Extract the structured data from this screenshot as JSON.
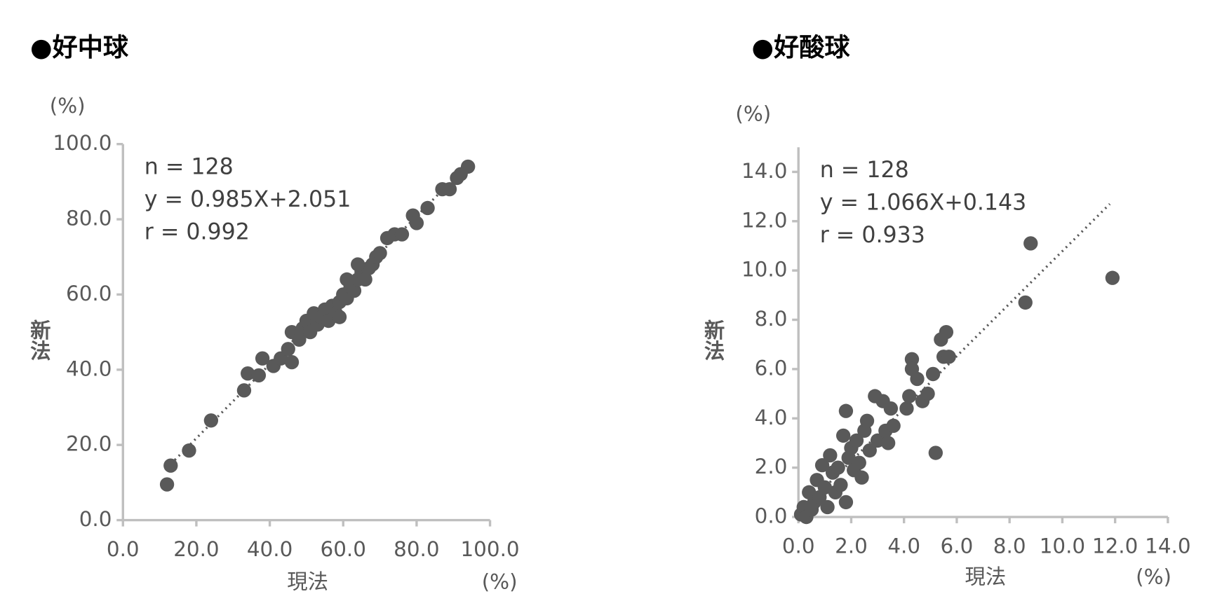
{
  "chart_data": [
    {
      "type": "scatter",
      "title": "●好中球",
      "x_label": "現法",
      "y_label": "新法",
      "x_unit": "(%)",
      "y_unit": "(%)",
      "annotations": [
        "n = 128",
        "y = 0.985X+2.051",
        "r = 0.992"
      ],
      "color": "#595959",
      "xlim": [
        0,
        100
      ],
      "ylim": [
        0,
        100
      ],
      "xticks": [
        {
          "value": 0,
          "label": "0.0"
        },
        {
          "value": 20,
          "label": "20.0"
        },
        {
          "value": 40,
          "label": "40.0"
        },
        {
          "value": 60,
          "label": "60.0"
        },
        {
          "value": 80,
          "label": "80.0"
        },
        {
          "value": 100,
          "label": "100.0"
        }
      ],
      "yticks": [
        {
          "value": 0,
          "label": "0.0"
        },
        {
          "value": 20,
          "label": "20.0"
        },
        {
          "value": 40,
          "label": "40.0"
        },
        {
          "value": 60,
          "label": "60.0"
        },
        {
          "value": 80,
          "label": "80.0"
        },
        {
          "value": 100,
          "label": "100.0"
        }
      ],
      "x": [
        12,
        13,
        18,
        24,
        33,
        34,
        37,
        38,
        41,
        43,
        45,
        46,
        46,
        48,
        49,
        50,
        51,
        52,
        53,
        54,
        55,
        56,
        57,
        58,
        59,
        59,
        60,
        61,
        62,
        63,
        64,
        65,
        66,
        67,
        68,
        69,
        70,
        72,
        74,
        76,
        79,
        80,
        83,
        87,
        89,
        91,
        92,
        94,
        61,
        64
      ],
      "values": [
        9.5,
        14.5,
        18.5,
        26.5,
        34.5,
        39,
        38.5,
        43,
        41,
        43,
        45.5,
        42,
        50,
        48,
        51,
        53,
        50,
        55,
        52,
        54,
        56,
        53,
        57,
        55,
        54,
        58,
        60,
        59,
        62,
        61,
        64,
        66,
        64,
        67,
        68,
        70,
        71,
        75,
        76,
        76,
        81,
        79,
        83,
        88,
        88,
        91,
        92,
        94,
        64,
        68
      ],
      "trendline": {
        "x": [
          12,
          94
        ],
        "y": [
          13.9,
          94.6
        ]
      }
    },
    {
      "type": "scatter",
      "title": "●好酸球",
      "x_label": "現法",
      "y_label": "新法",
      "x_unit": "(%)",
      "y_unit": "(%)",
      "annotations": [
        "n = 128",
        "y = 1.066X+0.143",
        "r = 0.933"
      ],
      "color": "#595959",
      "xlim": [
        0,
        14
      ],
      "ylim": [
        0,
        15
      ],
      "xticks": [
        {
          "value": 0,
          "label": "0.0"
        },
        {
          "value": 2,
          "label": "2.0"
        },
        {
          "value": 4,
          "label": "4.0"
        },
        {
          "value": 6,
          "label": "6.0"
        },
        {
          "value": 8,
          "label": "8.0"
        },
        {
          "value": 10,
          "label": "10.0"
        },
        {
          "value": 12,
          "label": "12.0"
        },
        {
          "value": 14,
          "label": "14.0"
        }
      ],
      "yticks": [
        {
          "value": 0,
          "label": "0.0"
        },
        {
          "value": 2,
          "label": "2.0"
        },
        {
          "value": 4,
          "label": "4.0"
        },
        {
          "value": 6,
          "label": "6.0"
        },
        {
          "value": 8,
          "label": "8.0"
        },
        {
          "value": 10,
          "label": "10.0"
        },
        {
          "value": 12,
          "label": "12.0"
        },
        {
          "value": 14,
          "label": "14.0"
        }
      ],
      "x": [
        0.1,
        0.2,
        0.3,
        0.4,
        0.5,
        0.6,
        0.7,
        0.8,
        0.9,
        1,
        1.1,
        1.2,
        1.3,
        1.4,
        1.5,
        1.6,
        1.7,
        1.8,
        1.8,
        1.9,
        2,
        2.1,
        2.2,
        2.3,
        2.4,
        2.5,
        2.6,
        2.7,
        2.9,
        3,
        3.2,
        3.3,
        3.4,
        3.5,
        3.6,
        4.1,
        4.2,
        4.3,
        4.3,
        4.5,
        4.7,
        4.9,
        5.1,
        5.2,
        5.4,
        5.6,
        5.5,
        5.7,
        8.6,
        8.8,
        11.9
      ],
      "values": [
        0.1,
        0.4,
        0,
        1,
        0.3,
        0.6,
        1.5,
        0.8,
        2.1,
        1.2,
        0.4,
        2.5,
        1.8,
        1,
        2,
        1.3,
        3.3,
        4.3,
        0.6,
        2.4,
        2.8,
        1.9,
        3.1,
        2.2,
        1.6,
        3.5,
        3.9,
        2.7,
        4.9,
        3.1,
        4.7,
        3.5,
        3,
        4.4,
        3.7,
        4.4,
        4.9,
        6.4,
        6,
        5.6,
        4.7,
        5,
        5.8,
        2.6,
        7.2,
        7.5,
        6.5,
        6.5,
        8.7,
        11.1,
        9.7
      ],
      "trendline": {
        "x": [
          0,
          11.8
        ],
        "y": [
          0.14,
          12.7
        ]
      }
    }
  ]
}
